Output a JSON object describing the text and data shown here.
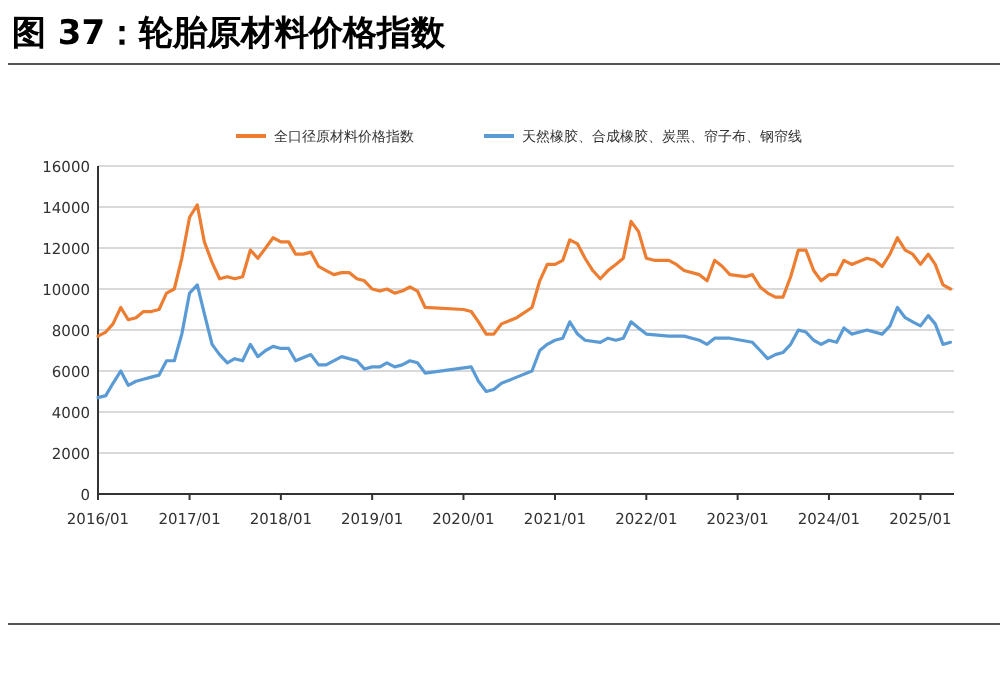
{
  "chart_data": {
    "type": "line",
    "title": "图 37：轮胎原材料价格指数",
    "legend": "top",
    "grid": "y",
    "marker": "none",
    "line_style": "solid",
    "xlim": [
      "2016-01",
      "2025-05-15"
    ],
    "xticks": [
      {
        "value": "2016-01",
        "label": "2016/01"
      },
      {
        "value": "2017-01",
        "label": "2017/01"
      },
      {
        "value": "2018-01",
        "label": "2018/01"
      },
      {
        "value": "2019-01",
        "label": "2019/01"
      },
      {
        "value": "2020-01",
        "label": "2020/01"
      },
      {
        "value": "2021-01",
        "label": "2021/01"
      },
      {
        "value": "2022-01",
        "label": "2022/01"
      },
      {
        "value": "2023-01",
        "label": "2023/01"
      },
      {
        "value": "2024-01",
        "label": "2024/01"
      },
      {
        "value": "2025-01",
        "label": "2025/01"
      }
    ],
    "ylim": [
      0,
      16000
    ],
    "yticks": [
      0,
      2000,
      4000,
      6000,
      8000,
      10000,
      12000,
      14000,
      16000
    ],
    "series": [
      {
        "name": "全口径原材料价格指数",
        "color": "#ed7d31",
        "x": [
          "2016-01",
          "2016-02",
          "2016-03",
          "2016-04",
          "2016-05",
          "2016-06",
          "2016-07",
          "2016-08",
          "2016-09",
          "2016-10",
          "2016-11",
          "2016-12",
          "2017-01",
          "2017-02",
          "2017-03",
          "2017-04",
          "2017-05",
          "2017-06",
          "2017-07",
          "2017-08",
          "2017-09",
          "2017-10",
          "2017-11",
          "2017-12",
          "2018-01",
          "2018-02",
          "2018-03",
          "2018-04",
          "2018-05",
          "2018-06",
          "2018-07",
          "2018-08",
          "2018-09",
          "2018-10",
          "2018-11",
          "2018-12",
          "2019-01",
          "2019-02",
          "2019-03",
          "2019-04",
          "2019-05",
          "2019-06",
          "2019-07",
          "2019-08",
          "2020-01",
          "2020-02",
          "2020-03",
          "2020-04",
          "2020-05",
          "2020-06",
          "2020-08",
          "2020-10",
          "2020-11",
          "2020-12",
          "2021-01",
          "2021-02",
          "2021-03",
          "2021-04",
          "2021-05",
          "2021-06",
          "2021-07",
          "2021-08",
          "2021-09",
          "2021-10",
          "2021-11",
          "2021-12",
          "2022-01",
          "2022-02",
          "2022-04",
          "2022-05",
          "2022-06",
          "2022-08",
          "2022-09",
          "2022-10",
          "2022-11",
          "2022-12",
          "2023-02",
          "2023-03",
          "2023-04",
          "2023-05",
          "2023-06",
          "2023-07",
          "2023-08",
          "2023-09",
          "2023-10",
          "2023-11",
          "2023-12",
          "2024-01",
          "2024-02",
          "2024-03",
          "2024-04",
          "2024-06",
          "2024-07",
          "2024-08",
          "2024-09",
          "2024-10",
          "2024-11",
          "2024-12",
          "2025-01",
          "2025-02",
          "2025-03",
          "2025-04",
          "2025-05"
        ],
        "values": [
          7700,
          7900,
          8300,
          9100,
          8500,
          8600,
          8900,
          8900,
          9000,
          9800,
          10000,
          11500,
          13500,
          14100,
          12300,
          11300,
          10500,
          10600,
          10500,
          10600,
          11900,
          11500,
          12000,
          12500,
          12300,
          12300,
          11700,
          11700,
          11800,
          11100,
          10900,
          10700,
          10800,
          10800,
          10500,
          10400,
          10000,
          9900,
          10000,
          9800,
          9900,
          10100,
          9900,
          9100,
          9000,
          8900,
          8400,
          7800,
          7800,
          8300,
          8600,
          9100,
          10400,
          11200,
          11200,
          11400,
          12400,
          12200,
          11500,
          10900,
          10500,
          10900,
          11200,
          11500,
          13300,
          12800,
          11500,
          11400,
          11400,
          11200,
          10900,
          10700,
          10400,
          11400,
          11100,
          10700,
          10600,
          10700,
          10100,
          9800,
          9600,
          9600,
          10600,
          11900,
          11900,
          10900,
          10400,
          10700,
          10700,
          11400,
          11200,
          11500,
          11400,
          11100,
          11700,
          12500,
          11900,
          11700,
          11200,
          11700,
          11200,
          10200,
          10000
        ]
      },
      {
        "name": "天然橡胶、合成橡胶、炭黑、帘子布、钢帘线",
        "color": "#5b9bd5",
        "x": [
          "2016-01",
          "2016-02",
          "2016-03",
          "2016-04",
          "2016-05",
          "2016-06",
          "2016-07",
          "2016-08",
          "2016-09",
          "2016-10",
          "2016-11",
          "2016-12",
          "2017-01",
          "2017-02",
          "2017-03",
          "2017-04",
          "2017-05",
          "2017-06",
          "2017-07",
          "2017-08",
          "2017-09",
          "2017-10",
          "2017-11",
          "2017-12",
          "2018-01",
          "2018-02",
          "2018-03",
          "2018-05",
          "2018-06",
          "2018-07",
          "2018-09",
          "2018-11",
          "2018-12",
          "2019-01",
          "2019-02",
          "2019-03",
          "2019-04",
          "2019-05",
          "2019-06",
          "2019-07",
          "2019-08",
          "2020-02",
          "2020-03",
          "2020-04",
          "2020-05",
          "2020-06",
          "2020-08",
          "2020-10",
          "2020-11",
          "2020-12",
          "2021-01",
          "2021-02",
          "2021-03",
          "2021-04",
          "2021-05",
          "2021-07",
          "2021-08",
          "2021-09",
          "2021-10",
          "2021-11",
          "2021-12",
          "2022-01",
          "2022-04",
          "2022-06",
          "2022-08",
          "2022-09",
          "2022-10",
          "2022-12",
          "2023-03",
          "2023-04",
          "2023-05",
          "2023-06",
          "2023-07",
          "2023-08",
          "2023-09",
          "2023-10",
          "2023-11",
          "2023-12",
          "2024-01",
          "2024-02",
          "2024-03",
          "2024-04",
          "2024-06",
          "2024-08",
          "2024-09",
          "2024-10",
          "2024-11",
          "2024-12",
          "2025-01",
          "2025-02",
          "2025-03",
          "2025-04",
          "2025-05"
        ],
        "values": [
          4700,
          4800,
          5400,
          6000,
          5300,
          5500,
          5600,
          5700,
          5800,
          6500,
          6500,
          7800,
          9800,
          10200,
          8800,
          7300,
          6800,
          6400,
          6600,
          6500,
          7300,
          6700,
          7000,
          7200,
          7100,
          7100,
          6500,
          6800,
          6300,
          6300,
          6700,
          6500,
          6100,
          6200,
          6200,
          6400,
          6200,
          6300,
          6500,
          6400,
          5900,
          6200,
          5500,
          5000,
          5100,
          5400,
          5700,
          6000,
          7000,
          7300,
          7500,
          7600,
          8400,
          7800,
          7500,
          7400,
          7600,
          7500,
          7600,
          8400,
          8100,
          7800,
          7700,
          7700,
          7500,
          7300,
          7600,
          7600,
          7400,
          7000,
          6600,
          6800,
          6900,
          7300,
          8000,
          7900,
          7500,
          7300,
          7500,
          7400,
          8100,
          7800,
          8000,
          7800,
          8200,
          9100,
          8600,
          8400,
          8200,
          8700,
          8300,
          7300,
          7400
        ]
      }
    ]
  }
}
